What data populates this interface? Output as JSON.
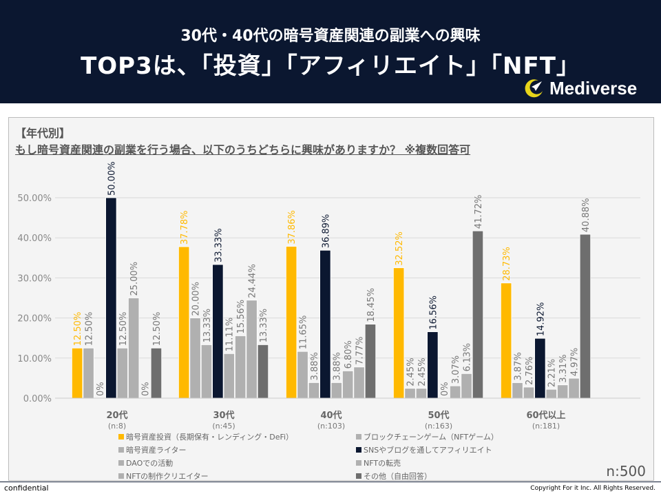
{
  "header": {
    "subtitle": "30代・40代の暗号資産関連の副業への興味",
    "title": "TOP3は、「投資」「アフィリエイト」「NFT」",
    "logo_text": "Mediverse"
  },
  "chart_header": {
    "segment": "【年代別】",
    "question": "もし暗号資産関連の副業を行う場合、以下のうちどちらに興味がありますか？ ※複数回答可"
  },
  "chart_data": {
    "type": "bar",
    "categories": [
      "20代",
      "30代",
      "40代",
      "50代",
      "60代以上"
    ],
    "category_n": [
      "(n:8)",
      "(n:45)",
      "(n:103)",
      "(n:163)",
      "(n:181)"
    ],
    "ylim": [
      0,
      50
    ],
    "yticks": [
      "0.00%",
      "10.00%",
      "20.00%",
      "30.00%",
      "40.00%",
      "50.00%"
    ],
    "grid": true,
    "legend_position": "bottom",
    "series": [
      {
        "name": "暗号資産投資（長期保有・レンディング・DeFi）",
        "color": "#ffb900",
        "values": [
          12.5,
          37.78,
          37.86,
          32.52,
          28.73
        ],
        "labels": [
          "12.50%",
          "37.78%",
          "37.86%",
          "32.52%",
          "28.73%"
        ]
      },
      {
        "name": "ブロックチェーンゲーム（NFTゲーム）",
        "color": "#b0b0b0",
        "values": [
          12.5,
          20.0,
          11.65,
          2.45,
          3.87
        ],
        "labels": [
          "12.50%",
          "20.00%",
          "11.65%",
          "2.45%",
          "3.87%"
        ]
      },
      {
        "name": "暗号資産ライター",
        "color": "#b0b0b0",
        "values": [
          0,
          13.33,
          3.88,
          2.45,
          2.76
        ],
        "labels": [
          "0%",
          "13.33%",
          "3.88%",
          "2.45%",
          "2.76%"
        ]
      },
      {
        "name": "SNSやブログを通してアフィリエイト",
        "color": "#0b1730",
        "values": [
          50.0,
          33.33,
          36.89,
          16.56,
          14.92
        ],
        "labels": [
          "50.00%",
          "33.33%",
          "36.89%",
          "16.56%",
          "14.92%"
        ]
      },
      {
        "name": "DAOでの活動",
        "color": "#b0b0b0",
        "values": [
          12.5,
          11.11,
          3.88,
          0,
          2.21
        ],
        "labels": [
          "12.50%",
          "11.11%",
          "3.88%",
          "0%",
          "2.21%"
        ]
      },
      {
        "name": "NFTの転売",
        "color": "#b0b0b0",
        "values": [
          25.0,
          15.56,
          6.8,
          3.07,
          3.31
        ],
        "labels": [
          "25.00%",
          "15.56%",
          "6.80%",
          "3.07%",
          "3.31%"
        ]
      },
      {
        "name": "NFTの制作クリエイター",
        "color": "#b0b0b0",
        "values": [
          0,
          24.44,
          7.77,
          6.13,
          4.97
        ],
        "labels": [
          "0%",
          "24.44%",
          "7.77%",
          "6.13%",
          "4.97%"
        ]
      },
      {
        "name": "その他（自由回答）",
        "color": "#6e6e6e",
        "values": [
          12.5,
          13.33,
          18.45,
          41.72,
          40.88
        ],
        "labels": [
          "12.50%",
          "13.33%",
          "18.45%",
          "41.72%",
          "40.88%"
        ]
      }
    ]
  },
  "legend_order": [
    0,
    2,
    4,
    6,
    1,
    3,
    5,
    7
  ],
  "total_n": "n:500",
  "footer": {
    "confidential": "confidential",
    "copyright": "Copyright For it Inc. All Rights Reserved."
  }
}
